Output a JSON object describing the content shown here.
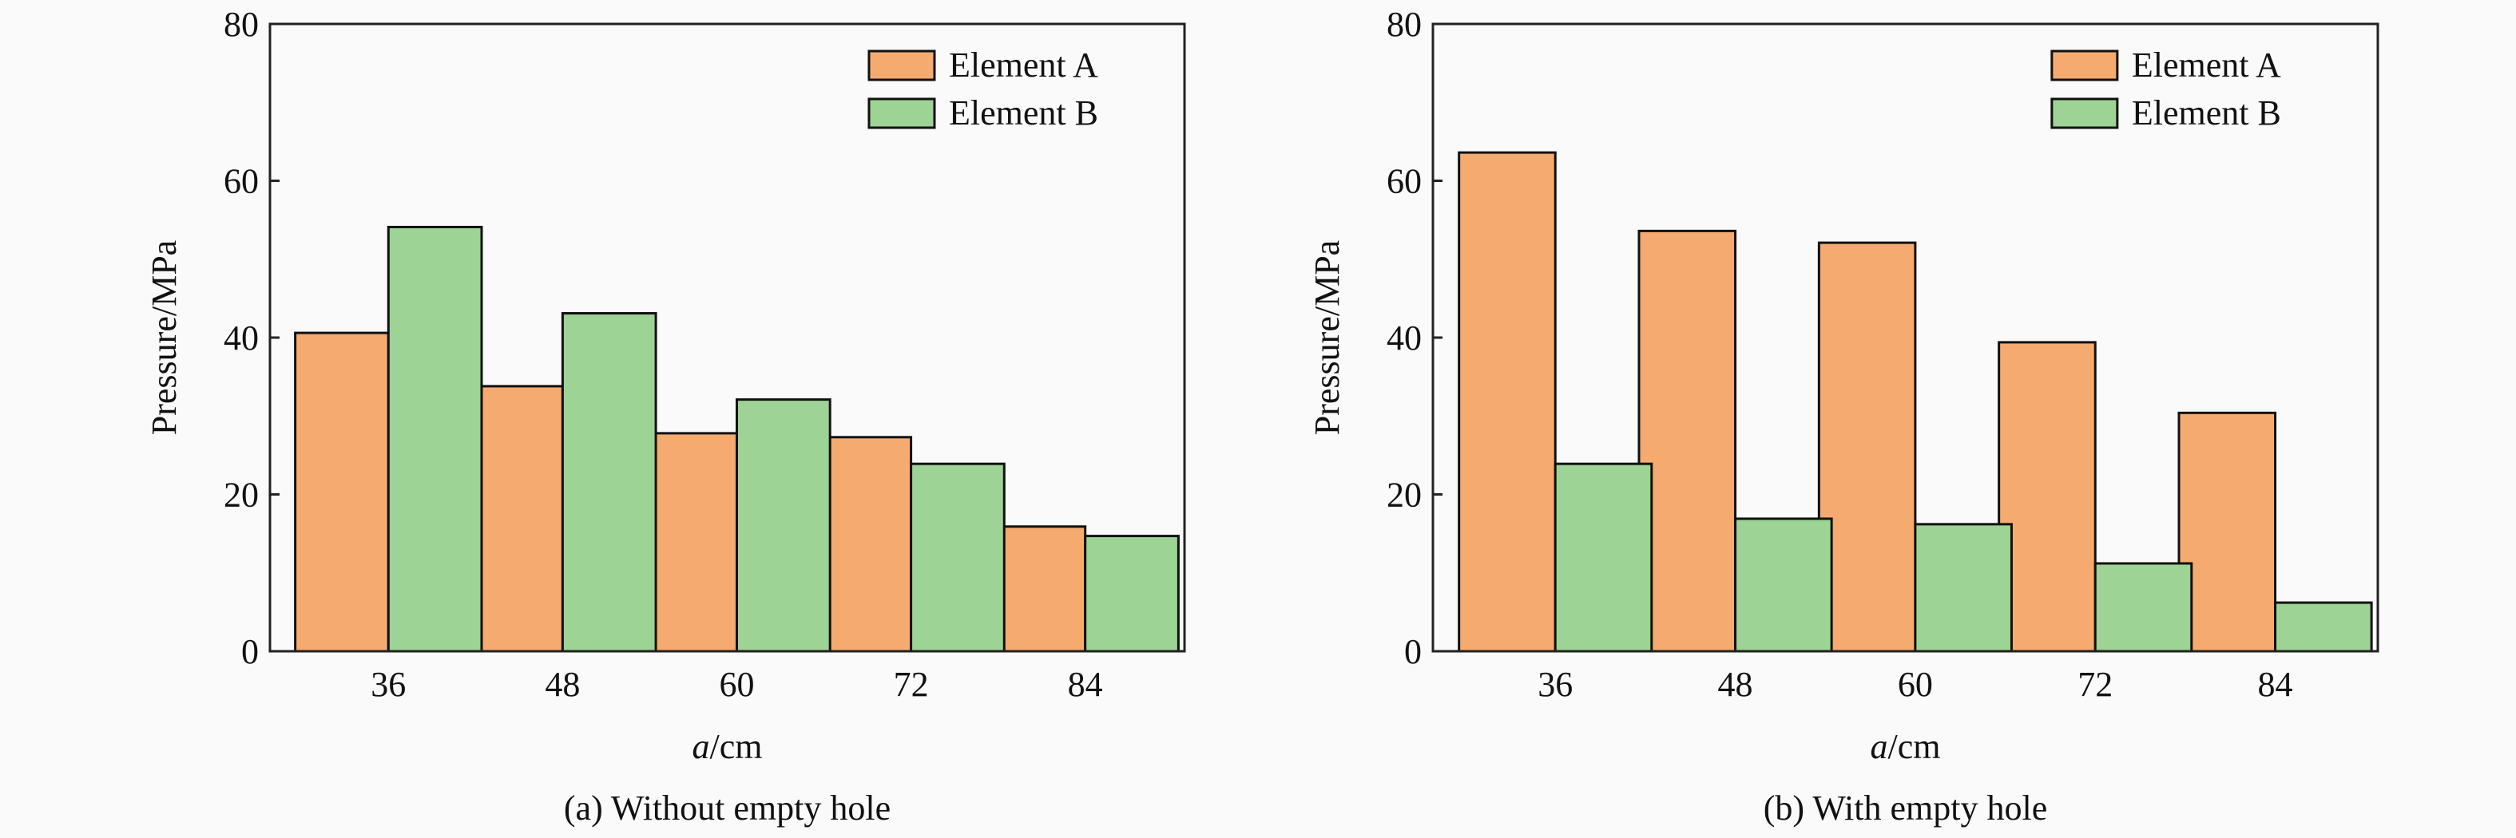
{
  "chart_data": [
    {
      "type": "bar",
      "caption": "(a) Without empty hole",
      "xlabel_italic": "a",
      "xlabel_rest": "/cm",
      "ylabel": "Pressure/MPa",
      "categories": [
        "36",
        "48",
        "60",
        "72",
        "84"
      ],
      "ylim": [
        0,
        80
      ],
      "yticks": [
        0,
        20,
        40,
        60,
        80
      ],
      "grid": false,
      "legend_placement": "top-right",
      "series": [
        {
          "name": "Element A",
          "color": "#f5ab70",
          "values": [
            40.6,
            33.8,
            27.8,
            27.3,
            15.9
          ]
        },
        {
          "name": "Element B",
          "color": "#9dd394",
          "values": [
            54.1,
            43.1,
            32.1,
            23.9,
            14.7
          ]
        }
      ]
    },
    {
      "type": "bar",
      "caption": "(b) With empty hole",
      "xlabel_italic": "a",
      "xlabel_rest": "/cm",
      "ylabel": "Pressure/MPa",
      "categories": [
        "36",
        "48",
        "60",
        "72",
        "84"
      ],
      "ylim": [
        0,
        80
      ],
      "yticks": [
        0,
        20,
        40,
        60,
        80
      ],
      "grid": false,
      "legend_placement": "top-right",
      "series": [
        {
          "name": "Element A",
          "color": "#f5ab70",
          "values": [
            63.6,
            53.6,
            52.1,
            39.4,
            30.4
          ]
        },
        {
          "name": "Element B",
          "color": "#9dd394",
          "values": [
            23.9,
            16.9,
            16.2,
            11.2,
            6.2
          ]
        }
      ]
    }
  ]
}
